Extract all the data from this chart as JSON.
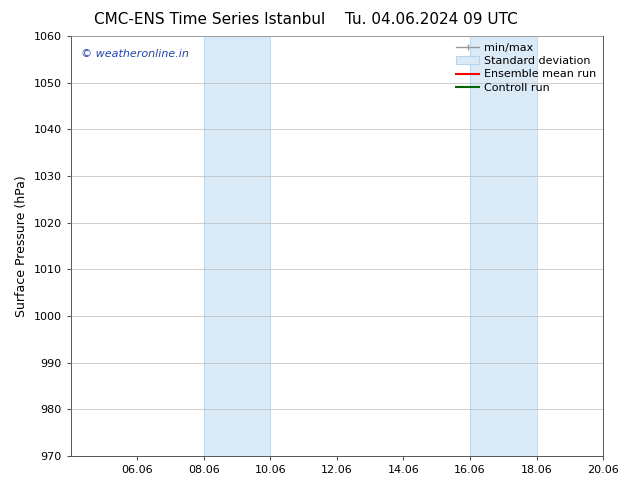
{
  "title_left": "CMC-ENS Time Series Istanbul",
  "title_right": "Tu. 04.06.2024 09 UTC",
  "ylabel": "Surface Pressure (hPa)",
  "ylim": [
    970,
    1060
  ],
  "yticks": [
    970,
    980,
    990,
    1000,
    1010,
    1020,
    1030,
    1040,
    1050,
    1060
  ],
  "xtick_labels": [
    "06.06",
    "08.06",
    "10.06",
    "12.06",
    "14.06",
    "16.06",
    "18.06",
    "20.06"
  ],
  "xtick_positions": [
    2,
    4,
    6,
    8,
    10,
    12,
    14,
    16
  ],
  "xlim": [
    0,
    16
  ],
  "shaded_regions": [
    {
      "x_start": 4,
      "x_end": 6
    },
    {
      "x_start": 12,
      "x_end": 14
    }
  ],
  "shaded_color": "#daeaf7",
  "shaded_edge_color": "#b8d4ea",
  "watermark_text": "© weatheronline.in",
  "watermark_color": "#2244aa",
  "bg_color": "#ffffff",
  "grid_color": "#bbbbbb",
  "spine_color": "#555555",
  "title_fontsize": 11,
  "ylabel_fontsize": 9,
  "tick_fontsize": 8,
  "watermark_fontsize": 8,
  "legend_fontsize": 8
}
